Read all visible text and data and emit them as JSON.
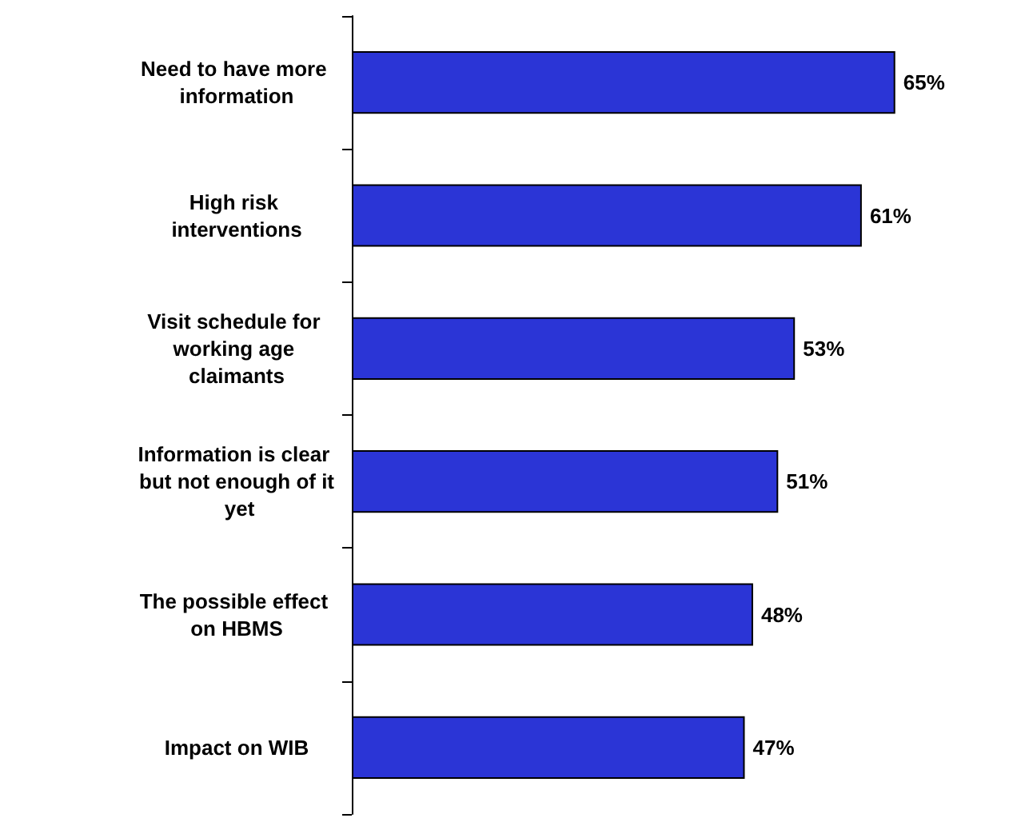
{
  "chart_data": {
    "type": "bar",
    "orientation": "horizontal",
    "categories": [
      "Need to have more information",
      "High risk interventions",
      "Visit schedule for working age claimants",
      "Information is clear but not enough of it yet",
      "The possible effect on HBMS",
      "Impact on WIB"
    ],
    "values": [
      65,
      61,
      53,
      51,
      48,
      47
    ],
    "value_labels": [
      "65%",
      "61%",
      "53%",
      "51%",
      "48%",
      "47%"
    ],
    "color": "#2b35d6",
    "tick_labels": "y"
  }
}
